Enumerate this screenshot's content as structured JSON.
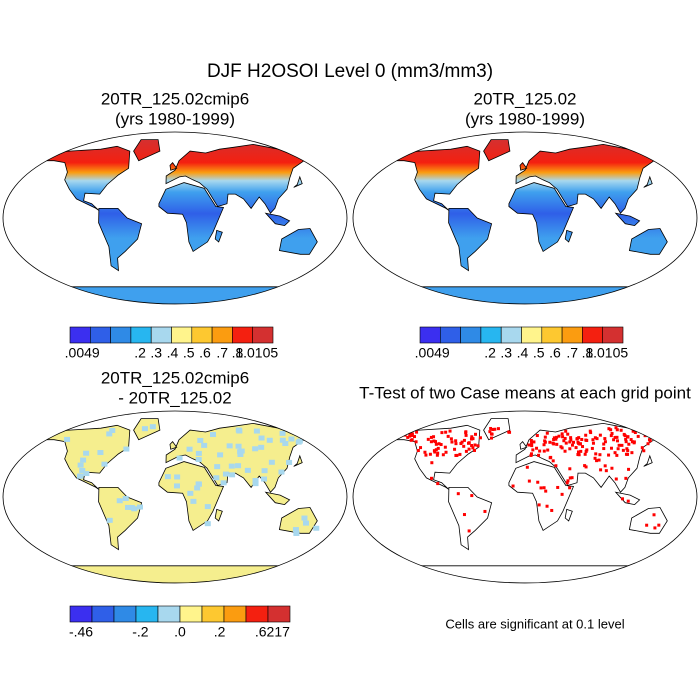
{
  "figure": {
    "title": "DJF H2OSOI Level 0 (mm3/mm3)"
  },
  "panels": [
    {
      "title": [
        "20TR_125.02cmip6",
        "(yrs 1980-1999)"
      ],
      "colorbar": {
        "colors": [
          "#3b2ff0",
          "#2f5fe8",
          "#2f8ae6",
          "#27b6f0",
          "#a8d8ee",
          "#fff48c",
          "#fdc830",
          "#fb9c10",
          "#f42010",
          "#d43030"
        ],
        "labels": [
          ".0049",
          ".2",
          ".3",
          ".4",
          ".5",
          ".6",
          ".7",
          ".8",
          "1.0105"
        ]
      }
    },
    {
      "title": [
        "20TR_125.02",
        "(yrs 1980-1999)"
      ],
      "colorbar": {
        "colors": [
          "#3b2ff0",
          "#2f5fe8",
          "#2f8ae6",
          "#27b6f0",
          "#a8d8ee",
          "#fff48c",
          "#fdc830",
          "#fb9c10",
          "#f42010",
          "#d43030"
        ],
        "labels": [
          ".0049",
          ".2",
          ".3",
          ".4",
          ".5",
          ".6",
          ".7",
          ".8",
          "1.0105"
        ]
      }
    },
    {
      "title": [
        "20TR_125.02cmip6",
        "- 20TR_125.02"
      ],
      "colorbar": {
        "colors": [
          "#3b2ff0",
          "#2f5fe8",
          "#2f8ae6",
          "#27b6f0",
          "#a8d8ee",
          "#fff48c",
          "#fdc830",
          "#fb9c10",
          "#f42010",
          "#d43030"
        ],
        "labels": [
          "-.46",
          "-.2",
          ".0",
          ".2",
          ".6217"
        ]
      }
    },
    {
      "title": [
        "T-Test of two Case means at each grid point"
      ],
      "note": "Cells are significant at 0.1 level"
    }
  ]
}
